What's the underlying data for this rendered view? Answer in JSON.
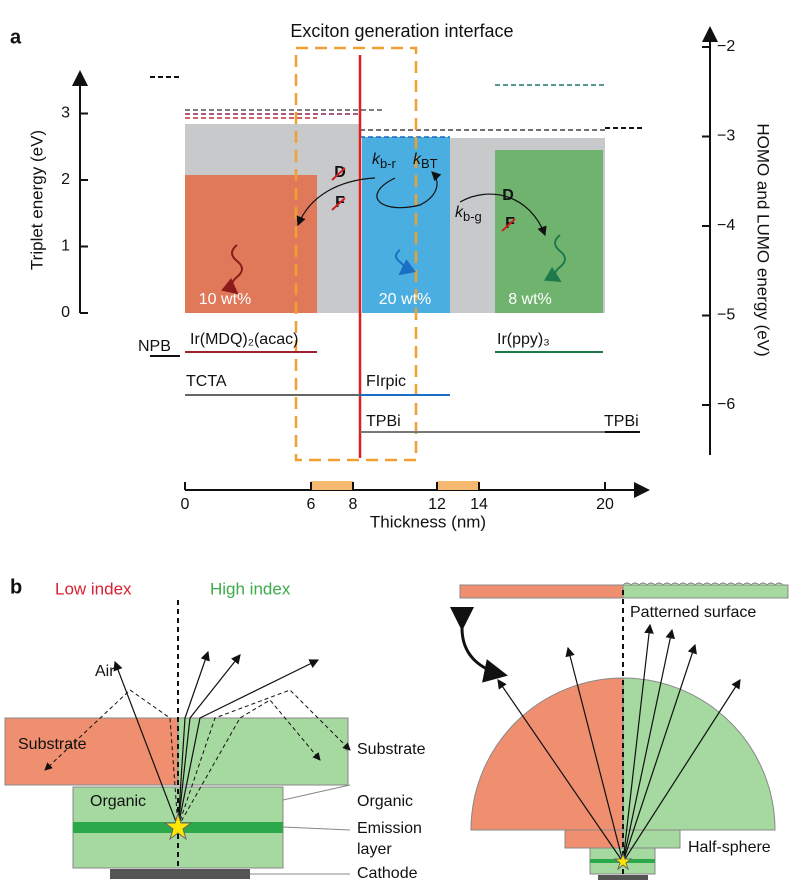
{
  "panel_a": {
    "label": "a",
    "title": "Exciton generation interface",
    "left_axis": {
      "title": "Triplet energy (eV)",
      "ticks": [
        0,
        1,
        2,
        3
      ]
    },
    "right_axis": {
      "title": "HOMO and LUMO energy (eV)",
      "ticks": [
        {
          "value": -2,
          "label": "−2"
        },
        {
          "value": -3,
          "label": "−3"
        },
        {
          "value": -4,
          "label": "−4"
        },
        {
          "value": -5,
          "label": "−5"
        },
        {
          "value": -6,
          "label": "−6"
        }
      ]
    },
    "x_axis": {
      "title": "Thickness (nm)",
      "ticks": [
        0,
        6,
        8,
        12,
        14,
        20
      ]
    },
    "concentrations": [
      "10 wt%",
      "20 wt%",
      "8 wt%"
    ],
    "mechanism": {
      "d1": "D",
      "f1": "F",
      "d2": "D",
      "f2": "F"
    },
    "rates": [
      {
        "symbol": "k",
        "subscript": "b-r"
      },
      {
        "symbol": "k",
        "subscript": "BT"
      },
      {
        "symbol": "k",
        "subscript": "b-g"
      }
    ],
    "materials": [
      "NPB",
      "Ir(MDQ)₂(acac)",
      "Ir(ppy)₃",
      "TCTA",
      "FIrpic",
      "TPBi",
      "TPBi"
    ]
  },
  "panel_b": {
    "label": "b",
    "low_index": "Low index",
    "high_index": "High index",
    "left": {
      "air": "Air",
      "substrate_inner": "Substrate",
      "organic_inner": "Organic",
      "substrate": "Substrate",
      "organic": "Organic",
      "emission": [
        "Emission",
        "layer"
      ],
      "cathode": "Cathode"
    },
    "right": {
      "patterned": "Patterned surface",
      "half_sphere": "Half-sphere"
    }
  }
}
